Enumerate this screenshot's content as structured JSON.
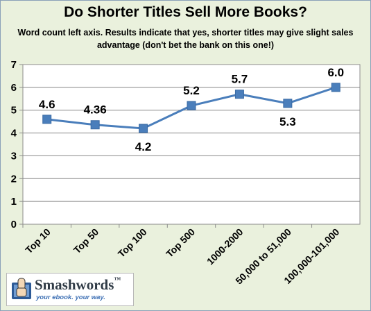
{
  "chart_data": {
    "type": "line",
    "title": "Do Shorter Titles Sell More Books?",
    "subtitle": "Word count left axis.  Results indicate that yes, shorter titles may give slight sales advantage (don't bet the bank on this one!)",
    "categories": [
      "Top 10",
      "Top 50",
      "Top 100",
      "Top 500",
      "1000-2000",
      "50,000 to 51,000",
      "100,000-101,000"
    ],
    "values": [
      4.6,
      4.36,
      4.2,
      5.2,
      5.7,
      5.3,
      6.0
    ],
    "data_labels": [
      "4.6",
      "4.36",
      "4.2",
      "5.2",
      "5.7",
      "5.3",
      "6.0"
    ],
    "yticks": [
      "0",
      "1",
      "2",
      "3",
      "4",
      "5",
      "6",
      "7"
    ],
    "ylim": [
      0,
      7
    ],
    "xlabel": "",
    "ylabel": "",
    "grid": true,
    "legend": "none",
    "colors": {
      "line": "#4a7ebb",
      "marker": "#4a7ebb",
      "plot_background": "#ffffff",
      "chart_background": "#eaf1dd",
      "grid": "#888888"
    }
  },
  "logo": {
    "name": "Smashwords",
    "trademark": "™",
    "tagline": "your ebook. your way.",
    "icon": "book-hand-icon"
  }
}
